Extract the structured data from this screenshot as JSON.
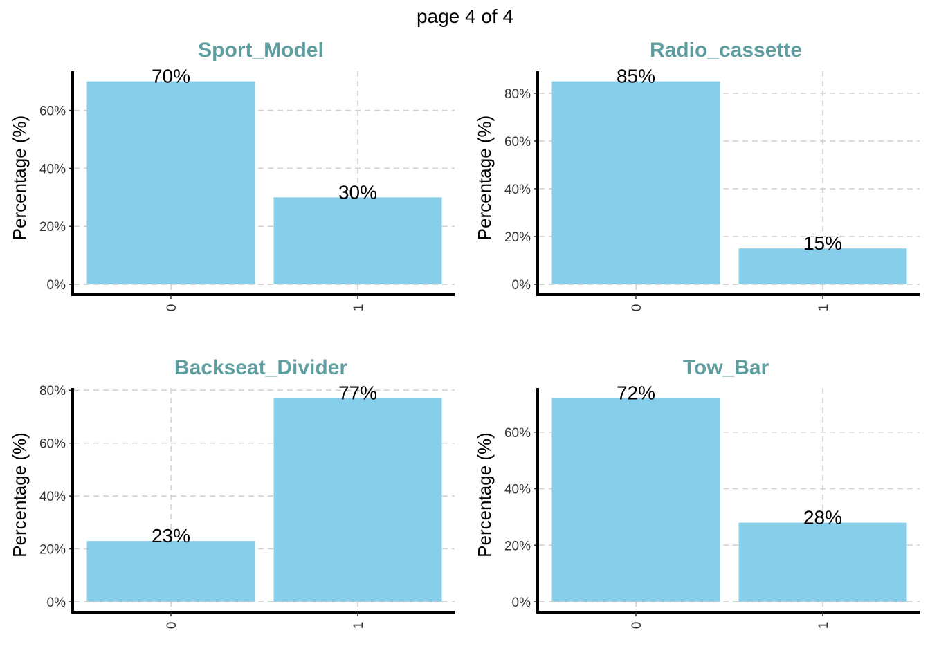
{
  "page_title": "page 4 of 4",
  "colors": {
    "bar": "#87ceeb",
    "panel_title": "#5f9ea0",
    "grid": "#cfcfcf",
    "axis": "#000000"
  },
  "chart_data": [
    {
      "type": "bar",
      "title": "Sport_Model",
      "ylabel": "Percentage (%)",
      "xlabel": "",
      "categories": [
        "0",
        "1"
      ],
      "values": [
        70,
        30
      ],
      "data_labels": [
        "70%",
        "30%"
      ],
      "ylim": [
        0,
        73.5
      ],
      "yticks": [
        0,
        20,
        40,
        60
      ],
      "ytick_labels": [
        "0%",
        "20%",
        "40%",
        "60%"
      ],
      "grid": true
    },
    {
      "type": "bar",
      "title": "Radio_cassette",
      "ylabel": "Percentage (%)",
      "xlabel": "",
      "categories": [
        "0",
        "1"
      ],
      "values": [
        85,
        15
      ],
      "data_labels": [
        "85%",
        "15%"
      ],
      "ylim": [
        0,
        89.25
      ],
      "yticks": [
        0,
        20,
        40,
        60,
        80
      ],
      "ytick_labels": [
        "0%",
        "20%",
        "40%",
        "60%",
        "80%"
      ],
      "grid": true
    },
    {
      "type": "bar",
      "title": "Backseat_Divider",
      "ylabel": "Percentage (%)",
      "xlabel": "",
      "categories": [
        "0",
        "1"
      ],
      "values": [
        23,
        77
      ],
      "data_labels": [
        "23%",
        "77%"
      ],
      "ylim": [
        0,
        80.85
      ],
      "yticks": [
        0,
        20,
        40,
        60,
        80
      ],
      "ytick_labels": [
        "0%",
        "20%",
        "40%",
        "60%",
        "80%"
      ],
      "grid": true
    },
    {
      "type": "bar",
      "title": "Tow_Bar",
      "ylabel": "Percentage (%)",
      "xlabel": "",
      "categories": [
        "0",
        "1"
      ],
      "values": [
        72,
        28
      ],
      "data_labels": [
        "72%",
        "28%"
      ],
      "ylim": [
        0,
        75.6
      ],
      "yticks": [
        0,
        20,
        40,
        60
      ],
      "ytick_labels": [
        "0%",
        "20%",
        "40%",
        "60%"
      ],
      "grid": true
    }
  ]
}
